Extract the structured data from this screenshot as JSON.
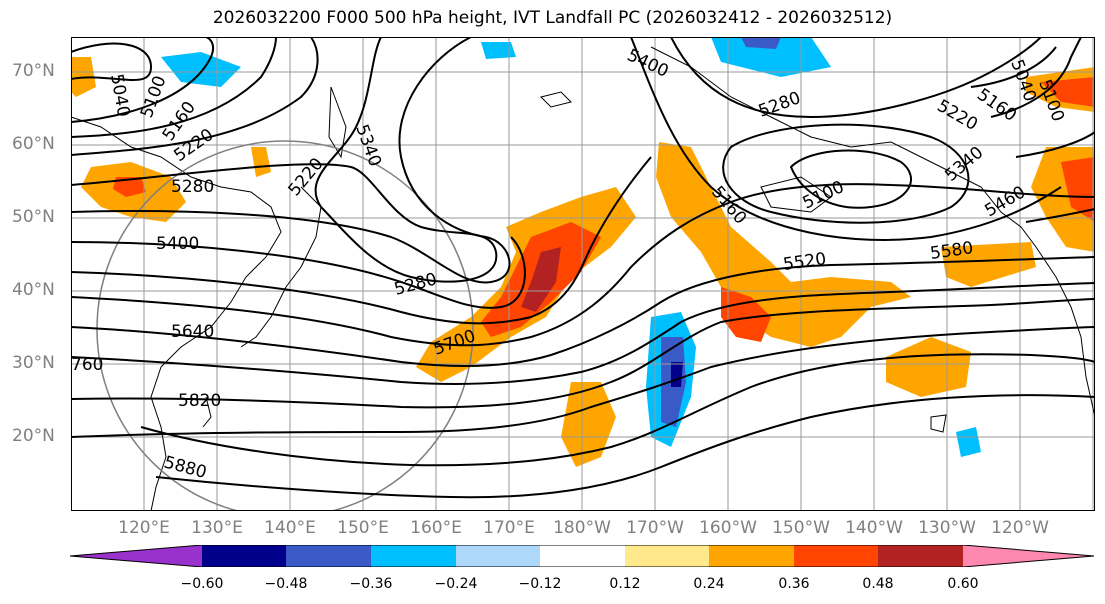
{
  "title": "2026032200 F000 500 hPa height, IVT Landfall PC (2026032412 - 2026032512)",
  "lat_labels": [
    "70°N",
    "60°N",
    "50°N",
    "40°N",
    "30°N",
    "20°N"
  ],
  "lon_labels": [
    "120°E",
    "130°E",
    "140°E",
    "150°E",
    "160°E",
    "170°E",
    "180°W",
    "170°W",
    "160°W",
    "150°W",
    "140°W",
    "130°W",
    "120°W"
  ],
  "contour_labels": [
    "5040",
    "5100",
    "5160",
    "5220",
    "5280",
    "5400",
    "5220",
    "5340",
    "5280",
    "5640",
    "5700",
    "760",
    "5820",
    "5880",
    "5400",
    "5280",
    "5160",
    "5100",
    "5520",
    "5580",
    "5220",
    "5160",
    "5340",
    "5460",
    "5040",
    "5100"
  ],
  "colorbar": {
    "ticks": [
      "−0.60",
      "−0.48",
      "−0.36",
      "−0.24",
      "−0.12",
      "0.12",
      "0.24",
      "0.36",
      "0.48",
      "0.60"
    ],
    "colors": [
      "#9932cc",
      "#00008b",
      "#3a5bc7",
      "#00bfff",
      "#add8f9",
      "#ffffff",
      "#ffe98a",
      "#ffa500",
      "#ff4500",
      "#b22222",
      "#ff88b0"
    ]
  }
}
